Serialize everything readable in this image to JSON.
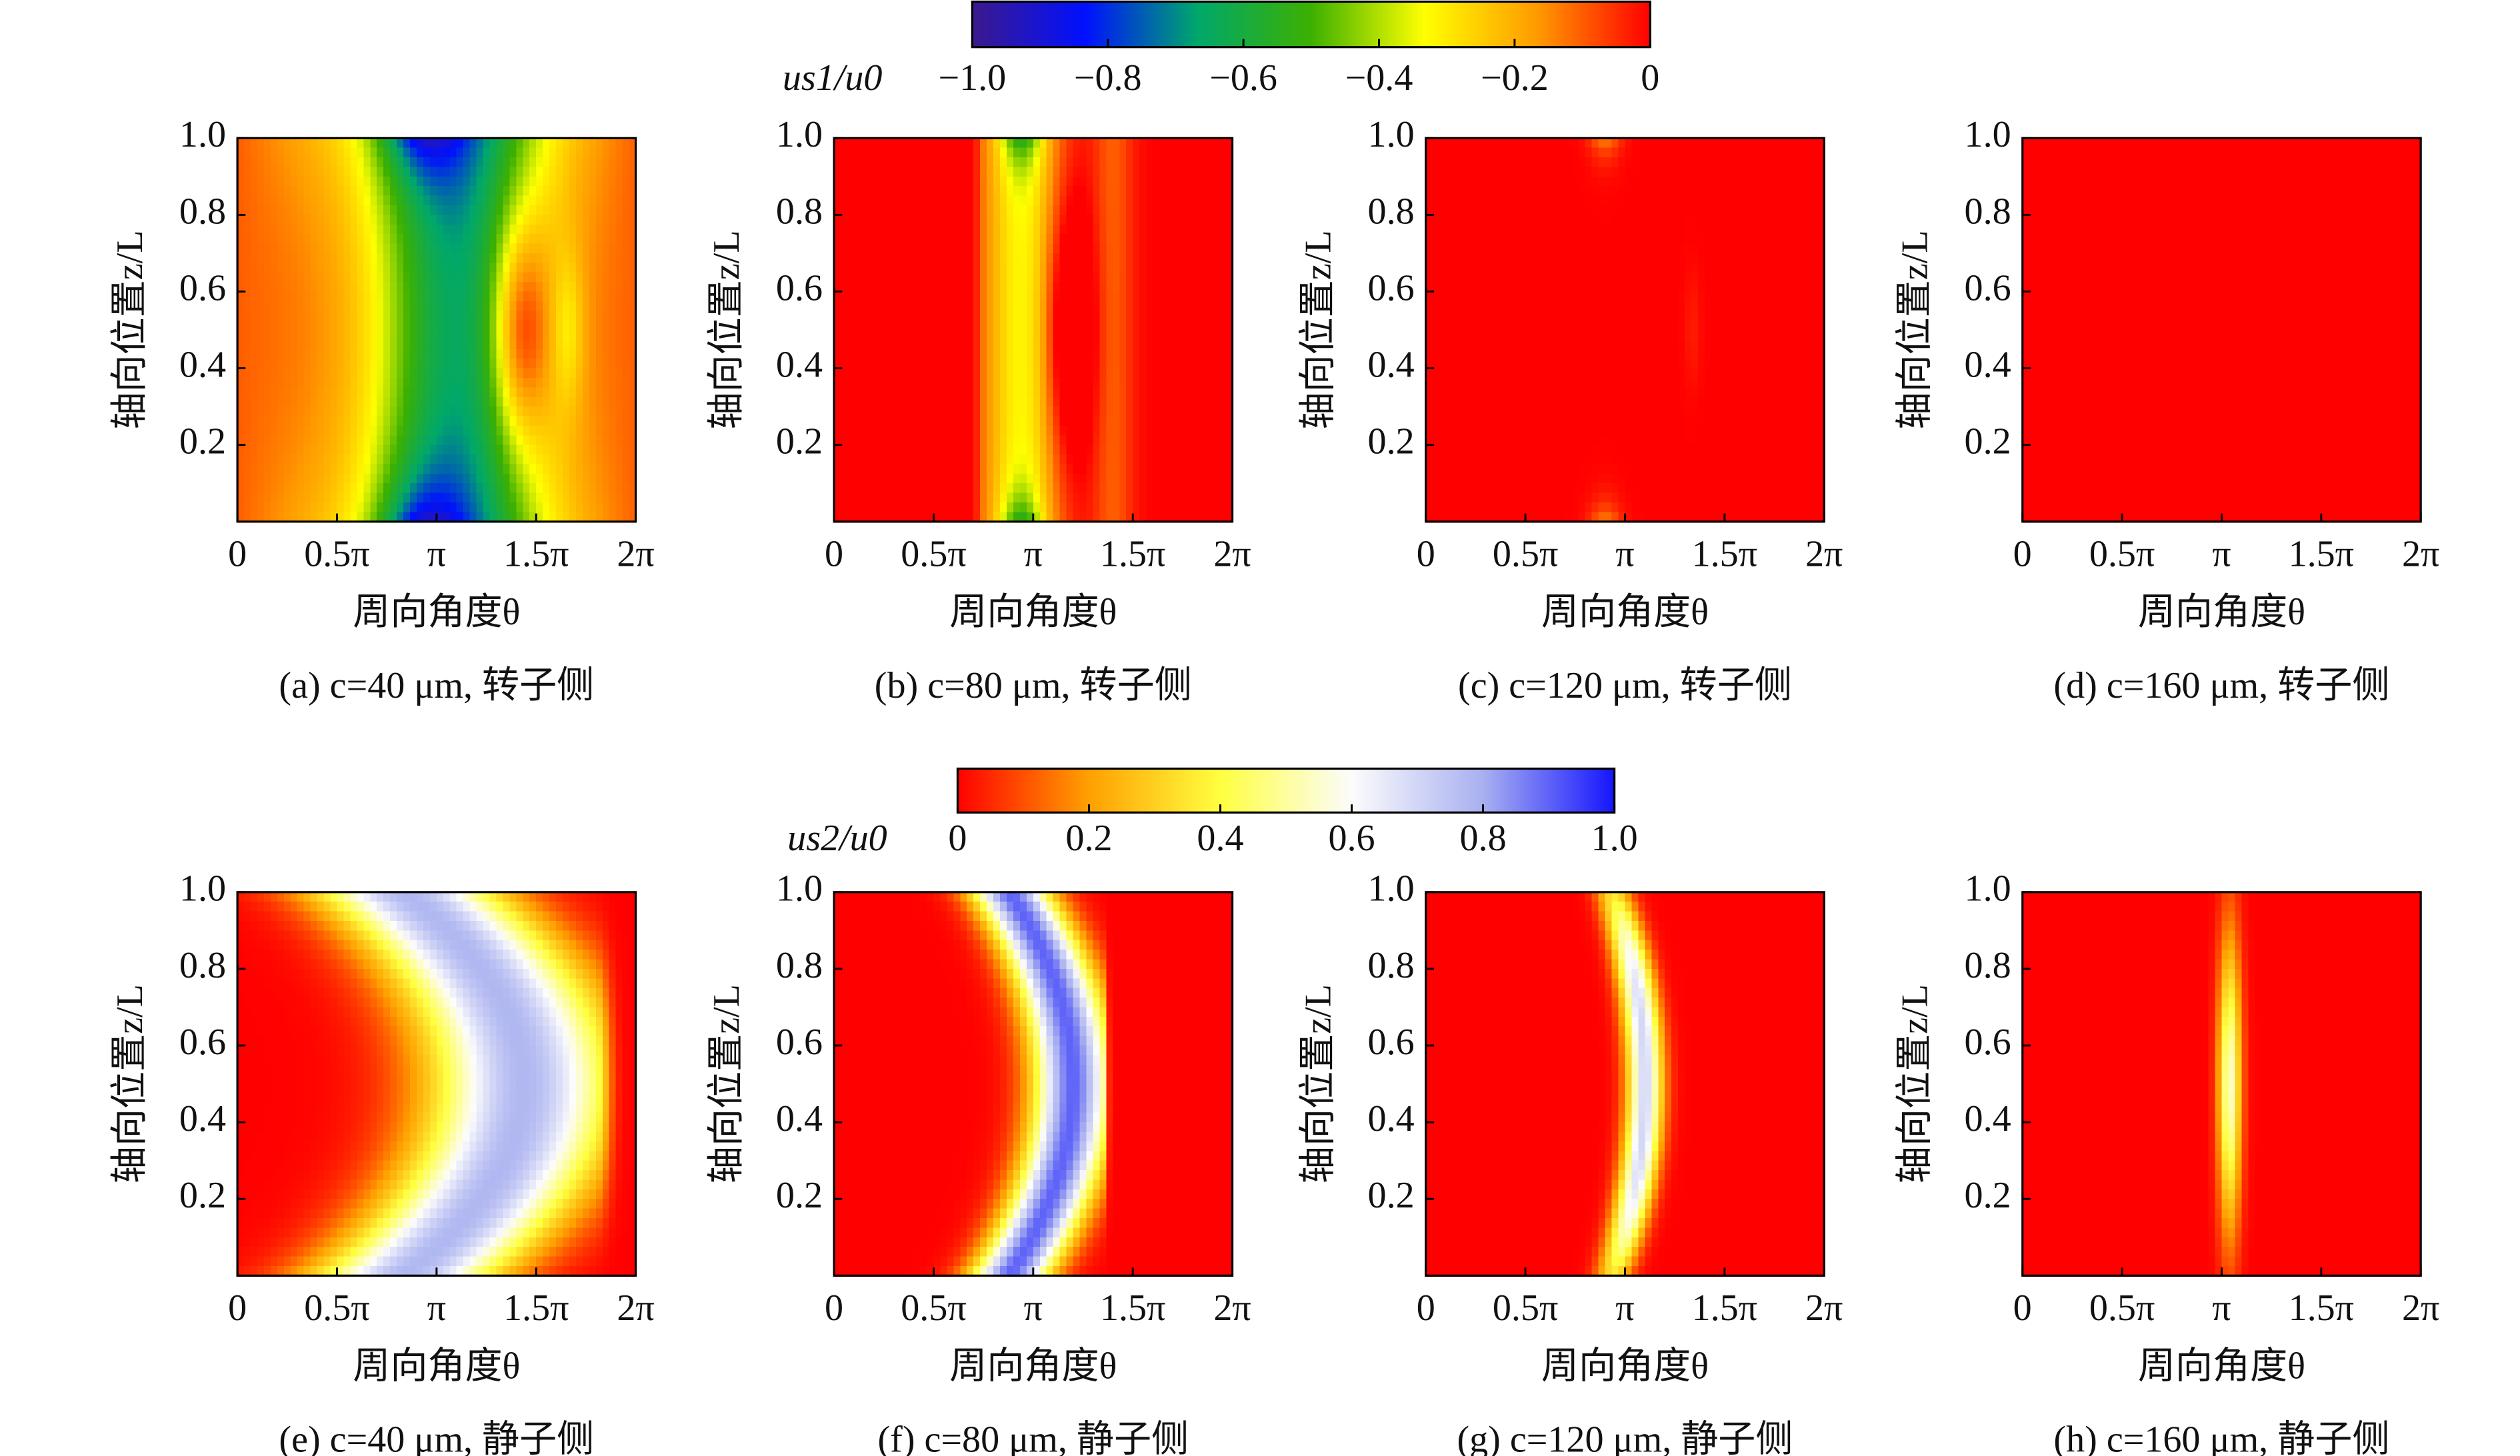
{
  "colorbars": [
    {
      "label": "us1/u0",
      "lim": [
        -1,
        0
      ],
      "ticks": [
        {
          "value": -1,
          "label": "−1.0"
        },
        {
          "value": -0.8,
          "label": "−0.8"
        },
        {
          "value": -0.6,
          "label": "−0.6"
        },
        {
          "value": -0.4,
          "label": "−0.4"
        },
        {
          "value": -0.2,
          "label": "−0.2"
        },
        0
      ],
      "colors": [
        "#3c1a8c",
        "#0010ff",
        "#00a86a",
        "#3cb000",
        "#ffff00",
        "#ff9a00",
        "#ff0000"
      ]
    },
    {
      "label": "us2/u0",
      "lim": [
        0,
        1
      ],
      "ticks": [
        0,
        0.2,
        0.4,
        0.6,
        0.8,
        {
          "value": 1,
          "label": "1.0"
        }
      ],
      "colors": [
        "#ff0000",
        "#ffa000",
        "#ffff40",
        "#fcfcfc",
        "#a8b0f0",
        "#1515ff"
      ]
    }
  ],
  "chart_data": [
    {
      "type": "heatmap",
      "title": "(a) c=40 μm, 转子侧",
      "xlabel": "周向角度θ",
      "ylabel": "轴向位置z/L",
      "colorbar": 0,
      "xlim": [
        0,
        6.2832
      ],
      "xticks": [
        0,
        {
          "value": 1.5708,
          "label": "0.5π"
        },
        {
          "value": 3.1416,
          "label": "π"
        },
        {
          "value": 4.7124,
          "label": "1.5π"
        },
        {
          "value": 6.2832,
          "label": "2π"
        }
      ],
      "ylim": [
        0,
        1
      ],
      "yticks": [
        0.2,
        0.4,
        0.6,
        0.8,
        {
          "value": 1,
          "label": "1.0"
        }
      ]
    },
    {
      "type": "heatmap",
      "title": "(b) c=80 μm, 转子侧",
      "xlabel": "周向角度θ",
      "ylabel": "轴向位置z/L",
      "colorbar": 0,
      "xlim": [
        0,
        6.2832
      ],
      "xticks": [
        0,
        {
          "value": 1.5708,
          "label": "0.5π"
        },
        {
          "value": 3.1416,
          "label": "π"
        },
        {
          "value": 4.7124,
          "label": "1.5π"
        },
        {
          "value": 6.2832,
          "label": "2π"
        }
      ],
      "ylim": [
        0,
        1
      ],
      "yticks": [
        0.2,
        0.4,
        0.6,
        0.8,
        {
          "value": 1,
          "label": "1.0"
        }
      ]
    },
    {
      "type": "heatmap",
      "title": "(c) c=120 μm, 转子侧",
      "xlabel": "周向角度θ",
      "ylabel": "轴向位置z/L",
      "colorbar": 0,
      "xlim": [
        0,
        6.2832
      ],
      "xticks": [
        0,
        {
          "value": 1.5708,
          "label": "0.5π"
        },
        {
          "value": 3.1416,
          "label": "π"
        },
        {
          "value": 4.7124,
          "label": "1.5π"
        },
        {
          "value": 6.2832,
          "label": "2π"
        }
      ],
      "ylim": [
        0,
        1
      ],
      "yticks": [
        0.2,
        0.4,
        0.6,
        0.8,
        {
          "value": 1,
          "label": "1.0"
        }
      ]
    },
    {
      "type": "heatmap",
      "title": "(d) c=160 μm, 转子侧",
      "xlabel": "周向角度θ",
      "ylabel": "轴向位置z/L",
      "colorbar": 0,
      "xlim": [
        0,
        6.2832
      ],
      "xticks": [
        0,
        {
          "value": 1.5708,
          "label": "0.5π"
        },
        {
          "value": 3.1416,
          "label": "π"
        },
        {
          "value": 4.7124,
          "label": "1.5π"
        },
        {
          "value": 6.2832,
          "label": "2π"
        }
      ],
      "ylim": [
        0,
        1
      ],
      "yticks": [
        0.2,
        0.4,
        0.6,
        0.8,
        {
          "value": 1,
          "label": "1.0"
        }
      ]
    },
    {
      "type": "heatmap",
      "title": "(e) c=40 μm, 静子侧",
      "xlabel": "周向角度θ",
      "ylabel": "轴向位置z/L",
      "colorbar": 1,
      "xlim": [
        0,
        6.2832
      ],
      "xticks": [
        0,
        {
          "value": 1.5708,
          "label": "0.5π"
        },
        {
          "value": 3.1416,
          "label": "π"
        },
        {
          "value": 4.7124,
          "label": "1.5π"
        },
        {
          "value": 6.2832,
          "label": "2π"
        }
      ],
      "ylim": [
        0,
        1
      ],
      "yticks": [
        0.2,
        0.4,
        0.6,
        0.8,
        {
          "value": 1,
          "label": "1.0"
        }
      ]
    },
    {
      "type": "heatmap",
      "title": "(f) c=80 μm, 静子侧",
      "xlabel": "周向角度θ",
      "ylabel": "轴向位置z/L",
      "colorbar": 1,
      "xlim": [
        0,
        6.2832
      ],
      "xticks": [
        0,
        {
          "value": 1.5708,
          "label": "0.5π"
        },
        {
          "value": 3.1416,
          "label": "π"
        },
        {
          "value": 4.7124,
          "label": "1.5π"
        },
        {
          "value": 6.2832,
          "label": "2π"
        }
      ],
      "ylim": [
        0,
        1
      ],
      "yticks": [
        0.2,
        0.4,
        0.6,
        0.8,
        {
          "value": 1,
          "label": "1.0"
        }
      ]
    },
    {
      "type": "heatmap",
      "title": "(g) c=120 μm, 静子侧",
      "xlabel": "周向角度θ",
      "ylabel": "轴向位置z/L",
      "colorbar": 1,
      "xlim": [
        0,
        6.2832
      ],
      "xticks": [
        0,
        {
          "value": 1.5708,
          "label": "0.5π"
        },
        {
          "value": 3.1416,
          "label": "π"
        },
        {
          "value": 4.7124,
          "label": "1.5π"
        },
        {
          "value": 6.2832,
          "label": "2π"
        }
      ],
      "ylim": [
        0,
        1
      ],
      "yticks": [
        0.2,
        0.4,
        0.6,
        0.8,
        {
          "value": 1,
          "label": "1.0"
        }
      ]
    },
    {
      "type": "heatmap",
      "title": "(h) c=160 μm, 静子侧",
      "xlabel": "周向角度θ",
      "ylabel": "轴向位置z/L",
      "colorbar": 1,
      "xlim": [
        0,
        6.2832
      ],
      "xticks": [
        0,
        {
          "value": 1.5708,
          "label": "0.5π"
        },
        {
          "value": 3.1416,
          "label": "π"
        },
        {
          "value": 4.7124,
          "label": "1.5π"
        },
        {
          "value": 6.2832,
          "label": "2π"
        }
      ],
      "ylim": [
        0,
        1
      ],
      "yticks": [
        0.2,
        0.4,
        0.6,
        0.8,
        {
          "value": 1,
          "label": "1.0"
        }
      ]
    }
  ]
}
